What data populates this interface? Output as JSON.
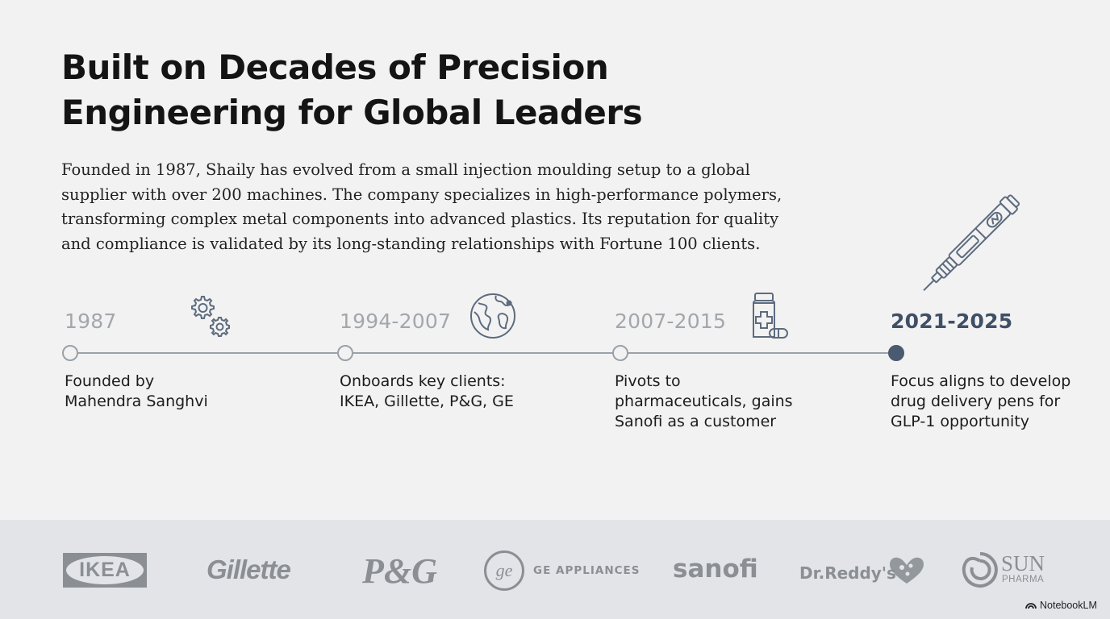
{
  "title": "Built on Decades of Precision Engineering for Global Leaders",
  "intro": "Founded in 1987, Shaily has evolved from a small injection moulding setup to a global supplier with over 200 machines. The company specializes in high-performance polymers, transforming complex metal components into advanced plastics. Its reputation for quality and compliance is validated by its long-standing relationships with Fortune 100 clients.",
  "timeline": [
    {
      "year": "1987",
      "description": "Founded by Mahendra Sanghvi",
      "icon": "gears-icon",
      "active": false
    },
    {
      "year": "1994-2007",
      "description": "Onboards key clients: IKEA, Gillette, P&G, GE",
      "icon": "globe-icon",
      "active": false
    },
    {
      "year": "2007-2015",
      "description": "Pivots to pharmaceuticals, gains Sanofi as a customer",
      "icon": "medicine-bottle-icon",
      "active": false
    },
    {
      "year": "2021-2025",
      "description": "Focus aligns to develop drug delivery pens for GLP-1 opportunity",
      "icon": "injection-pen-icon",
      "active": true
    }
  ],
  "logos": {
    "ikea": "IKEA",
    "gillette": "Gillette",
    "pg": "P&G",
    "ge_monogram": "ge",
    "ge": "GE APPLIANCES",
    "sanofi": "sanofi",
    "drreddys": "Dr.Reddy's",
    "sun": "SUN",
    "sun_sub": "PHARMA"
  },
  "watermark": "NotebookLM",
  "colors": {
    "background": "#f2f2f2",
    "band": "#e2e4e7",
    "accent": "#4a5a70",
    "muted": "#a3a7ab"
  }
}
